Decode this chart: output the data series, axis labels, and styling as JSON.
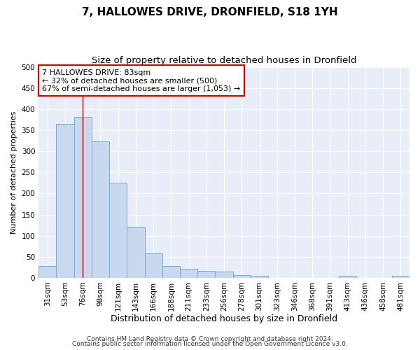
{
  "title": "7, HALLOWES DRIVE, DRONFIELD, S18 1YH",
  "subtitle": "Size of property relative to detached houses in Dronfield",
  "xlabel": "Distribution of detached houses by size in Dronfield",
  "ylabel": "Number of detached properties",
  "categories": [
    "31sqm",
    "53sqm",
    "76sqm",
    "98sqm",
    "121sqm",
    "143sqm",
    "166sqm",
    "188sqm",
    "211sqm",
    "233sqm",
    "256sqm",
    "278sqm",
    "301sqm",
    "323sqm",
    "346sqm",
    "368sqm",
    "391sqm",
    "413sqm",
    "436sqm",
    "458sqm",
    "481sqm"
  ],
  "values": [
    28,
    365,
    382,
    323,
    226,
    121,
    58,
    28,
    22,
    17,
    15,
    6,
    5,
    0,
    0,
    0,
    0,
    5,
    0,
    0,
    5
  ],
  "bar_color": "#c8d8ee",
  "bar_edge_color": "#7aaad0",
  "vline_x_index": 2,
  "vline_color": "#cc0000",
  "annotation_line1": "7 HALLOWES DRIVE: 83sqm",
  "annotation_line2": "← 32% of detached houses are smaller (500)",
  "annotation_line3": "67% of semi-detached houses are larger (1,053) →",
  "annotation_box_facecolor": "#ffffff",
  "annotation_box_edgecolor": "#cc0000",
  "ylim": [
    0,
    500
  ],
  "yticks": [
    0,
    50,
    100,
    150,
    200,
    250,
    300,
    350,
    400,
    450,
    500
  ],
  "fig_bg_color": "#ffffff",
  "ax_bg_color": "#e8eef8",
  "grid_color": "#ffffff",
  "footer_line1": "Contains HM Land Registry data © Crown copyright and database right 2024.",
  "footer_line2": "Contains public sector information licensed under the Open Government Licence v3.0.",
  "title_fontsize": 11,
  "subtitle_fontsize": 9.5,
  "xlabel_fontsize": 9,
  "ylabel_fontsize": 8,
  "tick_fontsize": 7.5,
  "annotation_fontsize": 8,
  "footer_fontsize": 6.5
}
